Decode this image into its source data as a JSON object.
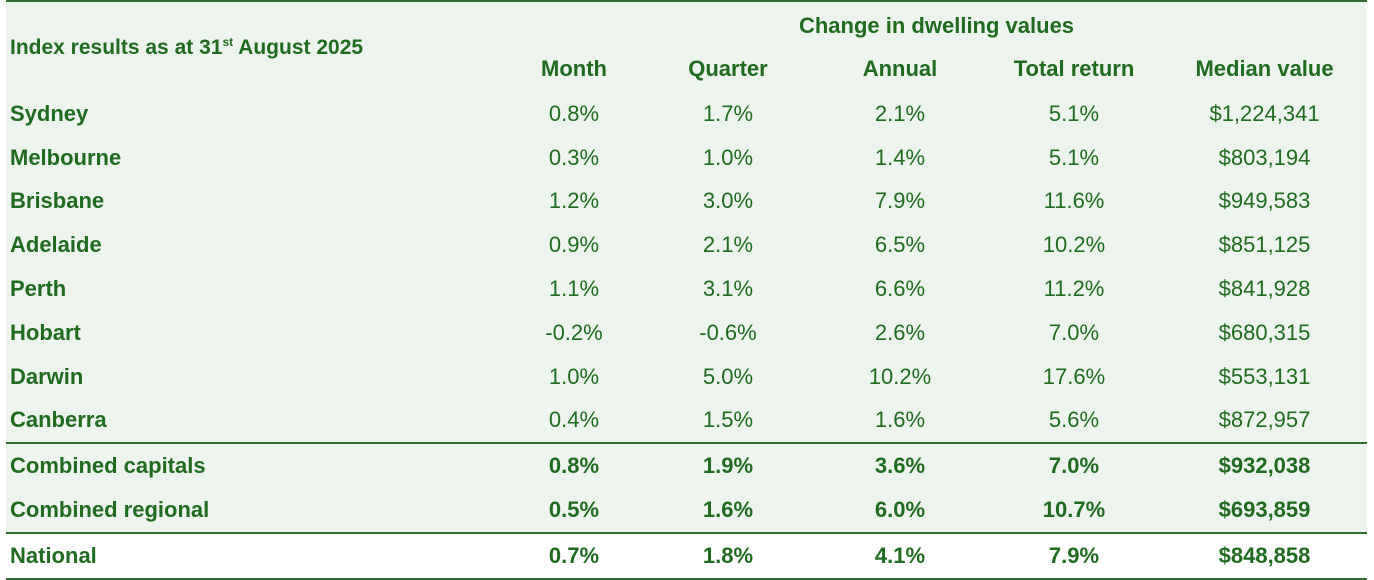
{
  "header": {
    "title_prefix": "Index results as at 31",
    "title_sup": "st",
    "title_suffix": " August 2025",
    "group_label": "Change in dwelling values",
    "columns": [
      "Month",
      "Quarter",
      "Annual",
      "Total return",
      "Median value"
    ]
  },
  "rows": [
    {
      "name": "Sydney",
      "month": "0.8%",
      "quarter": "1.7%",
      "annual": "2.1%",
      "total_return": "5.1%",
      "median": "$1,224,341"
    },
    {
      "name": "Melbourne",
      "month": "0.3%",
      "quarter": "1.0%",
      "annual": "1.4%",
      "total_return": "5.1%",
      "median": "$803,194"
    },
    {
      "name": "Brisbane",
      "month": "1.2%",
      "quarter": "3.0%",
      "annual": "7.9%",
      "total_return": "11.6%",
      "median": "$949,583"
    },
    {
      "name": "Adelaide",
      "month": "0.9%",
      "quarter": "2.1%",
      "annual": "6.5%",
      "total_return": "10.2%",
      "median": "$851,125"
    },
    {
      "name": "Perth",
      "month": "1.1%",
      "quarter": "3.1%",
      "annual": "6.6%",
      "total_return": "11.2%",
      "median": "$841,928"
    },
    {
      "name": "Hobart",
      "month": "-0.2%",
      "quarter": "-0.6%",
      "annual": "2.6%",
      "total_return": "7.0%",
      "median": "$680,315"
    },
    {
      "name": "Darwin",
      "month": "1.0%",
      "quarter": "5.0%",
      "annual": "10.2%",
      "total_return": "17.6%",
      "median": "$553,131"
    },
    {
      "name": "Canberra",
      "month": "0.4%",
      "quarter": "1.5%",
      "annual": "1.6%",
      "total_return": "5.6%",
      "median": "$872,957"
    },
    {
      "name": "Combined capitals",
      "month": "0.8%",
      "quarter": "1.9%",
      "annual": "3.6%",
      "total_return": "7.0%",
      "median": "$932,038"
    },
    {
      "name": "Combined regional",
      "month": "0.5%",
      "quarter": "1.6%",
      "annual": "6.0%",
      "total_return": "10.7%",
      "median": "$693,859"
    },
    {
      "name": "National",
      "month": "0.7%",
      "quarter": "1.8%",
      "annual": "4.1%",
      "total_return": "7.9%",
      "median": "$848,858"
    }
  ],
  "colors": {
    "text": "#1f6b1f",
    "row_background": "#edf4ed",
    "rule": "#2f6e2f"
  }
}
